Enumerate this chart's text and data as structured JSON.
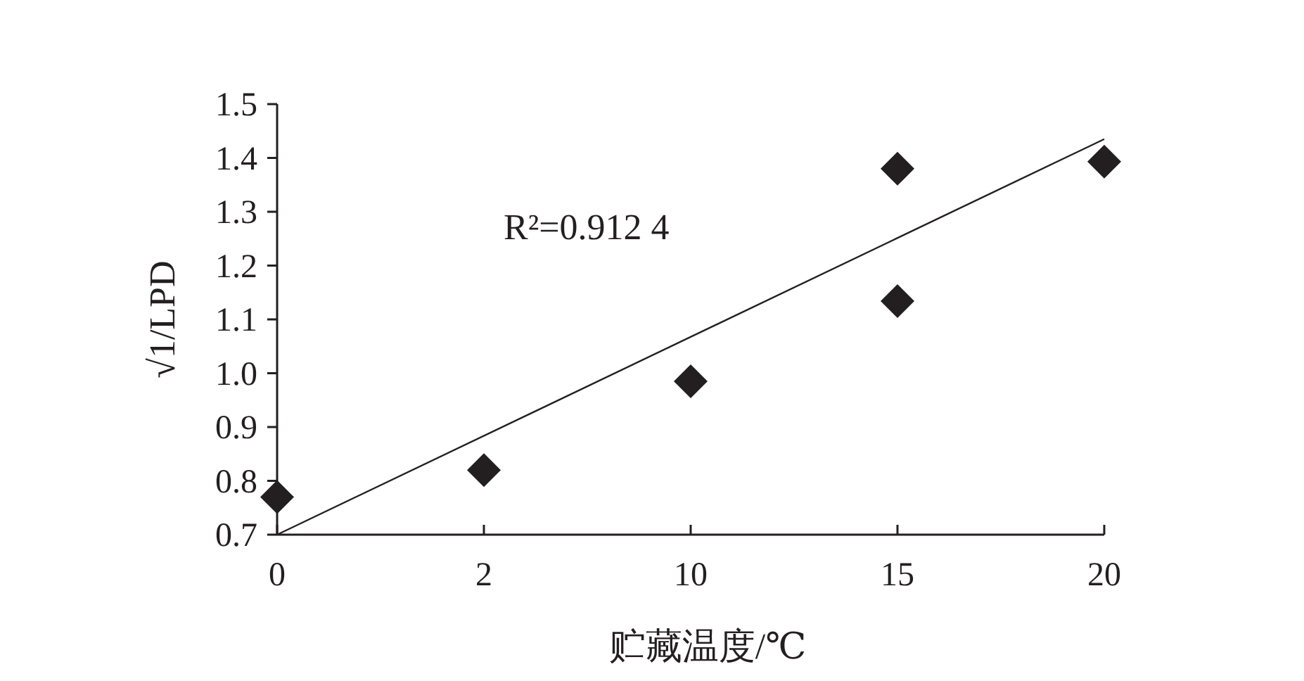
{
  "chart_data": {
    "type": "scatter",
    "categories": [
      "0",
      "2",
      "10",
      "15",
      "20"
    ],
    "xlabel": "贮藏温度/℃",
    "ylabel": "√1/LPD",
    "ylim": [
      0.7,
      1.5
    ],
    "yticks": [
      0.7,
      0.8,
      0.9,
      {
        "value": 1,
        "label": "1.0"
      },
      1.1,
      1.2,
      1.3,
      1.4,
      1.5
    ],
    "grid": false,
    "series": [
      {
        "marker": "diamond",
        "color": "#231f20",
        "x": [
          "0",
          "2",
          "10",
          "15",
          "15",
          "20"
        ],
        "values": [
          0.77,
          0.82,
          0.985,
          1.38,
          1.134,
          1.393
        ]
      },
      {
        "type": "line",
        "color": "#231f20",
        "x": [
          "0",
          "20"
        ],
        "values": [
          0.7,
          1.435
        ]
      }
    ],
    "annotations": [
      "R²=0.912 4"
    ]
  }
}
